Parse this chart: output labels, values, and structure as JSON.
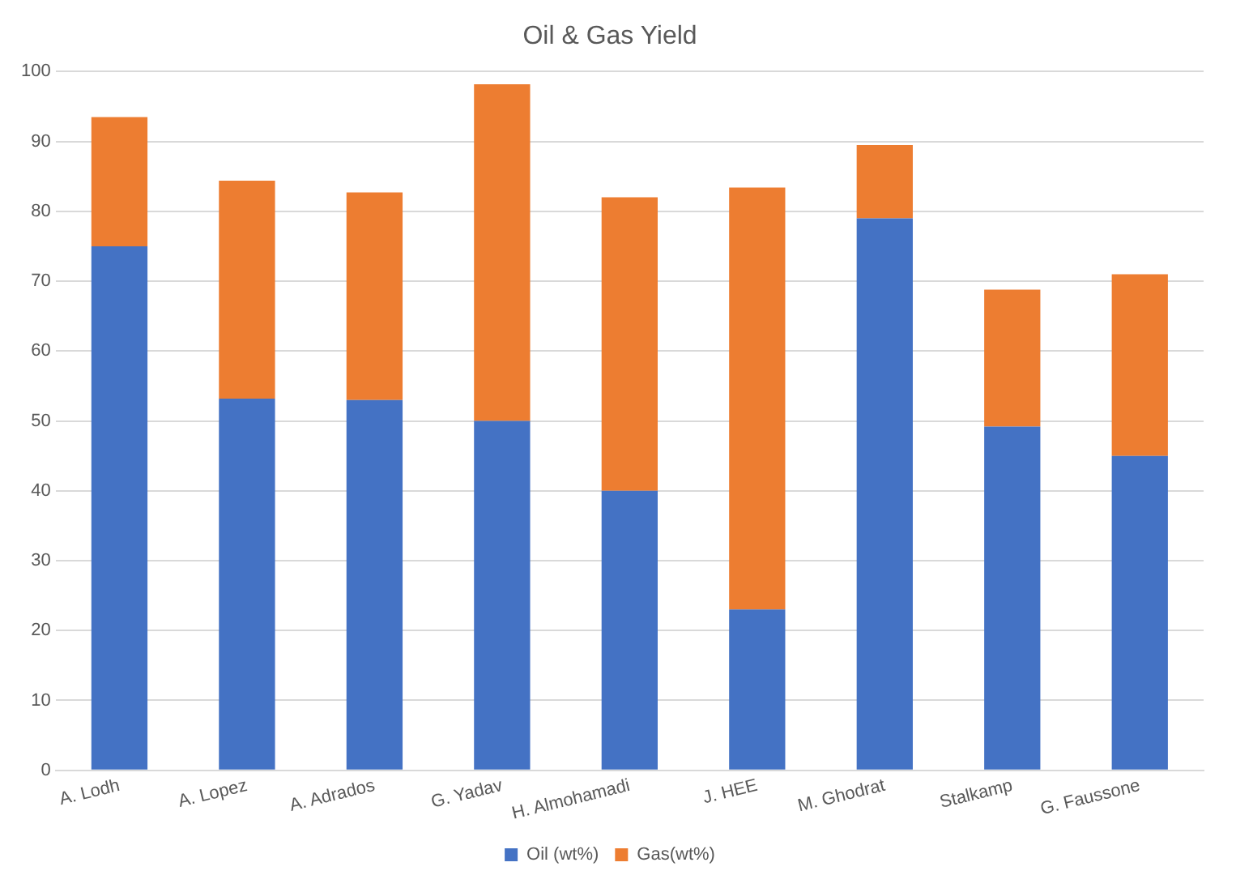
{
  "chart_data": {
    "type": "bar",
    "title": "Oil & Gas Yield",
    "stacked": true,
    "categories": [
      "A. Lodh",
      "A. Lopez",
      "A. Adrados",
      "G. Yadav",
      "H. Almohamadi",
      "J. HEE",
      "M. Ghodrat",
      "Stalkamp",
      "G. Faussone"
    ],
    "series": [
      {
        "name": "Oil (wt%)",
        "color": "#4472c4",
        "values": [
          75,
          53.2,
          53,
          50,
          40,
          23,
          79,
          49.2,
          45
        ]
      },
      {
        "name": "Gas(wt%)",
        "color": "#ed7d31",
        "values": [
          18.5,
          31.2,
          29.7,
          48.2,
          42,
          60.4,
          10.5,
          19.6,
          26
        ]
      }
    ],
    "ylim": [
      0,
      100
    ],
    "yticks": [
      0,
      10,
      20,
      30,
      40,
      50,
      60,
      70,
      80,
      90,
      100
    ],
    "grid": "y",
    "legend": "bottom"
  }
}
